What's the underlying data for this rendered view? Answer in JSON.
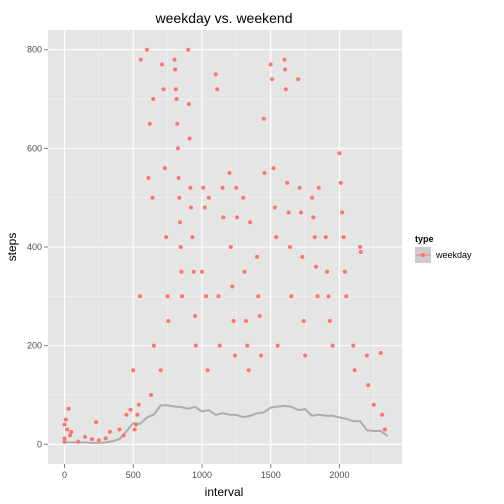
{
  "chart_data": {
    "type": "scatter",
    "title": "weekday vs. weekend",
    "xlabel": "interval",
    "ylabel": "steps",
    "xlim": [
      -120,
      2455
    ],
    "ylim": [
      -40,
      840
    ],
    "x_ticks": [
      0,
      500,
      1000,
      1500,
      2000
    ],
    "y_ticks": [
      0,
      200,
      400,
      600,
      800
    ],
    "x_tick_labels": [
      "0",
      "500",
      "1000",
      "1500",
      "2000"
    ],
    "y_tick_labels": [
      "0",
      "200",
      "400",
      "600",
      "800"
    ],
    "grid": true,
    "legend": {
      "title": "type",
      "placement": "right",
      "entries": [
        "weekday"
      ]
    },
    "series": [
      {
        "name": "weekday",
        "color": "#F8766D",
        "points": [
          [
            0,
            12
          ],
          [
            0,
            40
          ],
          [
            0,
            5
          ],
          [
            10,
            50
          ],
          [
            20,
            30
          ],
          [
            30,
            72
          ],
          [
            40,
            18
          ],
          [
            50,
            25
          ],
          [
            100,
            5
          ],
          [
            150,
            15
          ],
          [
            200,
            10
          ],
          [
            230,
            45
          ],
          [
            250,
            8
          ],
          [
            300,
            12
          ],
          [
            330,
            25
          ],
          [
            400,
            30
          ],
          [
            430,
            18
          ],
          [
            450,
            60
          ],
          [
            480,
            70
          ],
          [
            500,
            150
          ],
          [
            510,
            30
          ],
          [
            520,
            40
          ],
          [
            530,
            60
          ],
          [
            540,
            80
          ],
          [
            550,
            300
          ],
          [
            555,
            780
          ],
          [
            600,
            800
          ],
          [
            610,
            540
          ],
          [
            620,
            650
          ],
          [
            630,
            100
          ],
          [
            640,
            500
          ],
          [
            645,
            700
          ],
          [
            650,
            200
          ],
          [
            700,
            150
          ],
          [
            710,
            770
          ],
          [
            720,
            720
          ],
          [
            730,
            560
          ],
          [
            740,
            420
          ],
          [
            750,
            300
          ],
          [
            755,
            250
          ],
          [
            800,
            780
          ],
          [
            805,
            760
          ],
          [
            810,
            720
          ],
          [
            815,
            700
          ],
          [
            820,
            650
          ],
          [
            825,
            600
          ],
          [
            830,
            540
          ],
          [
            835,
            500
          ],
          [
            840,
            450
          ],
          [
            845,
            400
          ],
          [
            850,
            350
          ],
          [
            855,
            300
          ],
          [
            900,
            800
          ],
          [
            905,
            690
          ],
          [
            910,
            620
          ],
          [
            915,
            520
          ],
          [
            920,
            480
          ],
          [
            930,
            420
          ],
          [
            940,
            350
          ],
          [
            950,
            260
          ],
          [
            955,
            200
          ],
          [
            1000,
            350
          ],
          [
            1010,
            520
          ],
          [
            1020,
            480
          ],
          [
            1030,
            300
          ],
          [
            1040,
            150
          ],
          [
            1050,
            500
          ],
          [
            1100,
            750
          ],
          [
            1110,
            720
          ],
          [
            1120,
            300
          ],
          [
            1130,
            200
          ],
          [
            1150,
            520
          ],
          [
            1155,
            460
          ],
          [
            1200,
            550
          ],
          [
            1210,
            400
          ],
          [
            1220,
            320
          ],
          [
            1230,
            250
          ],
          [
            1240,
            180
          ],
          [
            1250,
            520
          ],
          [
            1255,
            460
          ],
          [
            1300,
            500
          ],
          [
            1310,
            350
          ],
          [
            1320,
            250
          ],
          [
            1330,
            200
          ],
          [
            1340,
            150
          ],
          [
            1350,
            450
          ],
          [
            1400,
            380
          ],
          [
            1410,
            300
          ],
          [
            1420,
            260
          ],
          [
            1430,
            180
          ],
          [
            1450,
            660
          ],
          [
            1455,
            550
          ],
          [
            1500,
            770
          ],
          [
            1510,
            740
          ],
          [
            1520,
            560
          ],
          [
            1530,
            480
          ],
          [
            1540,
            420
          ],
          [
            1550,
            200
          ],
          [
            1600,
            780
          ],
          [
            1605,
            760
          ],
          [
            1610,
            720
          ],
          [
            1620,
            530
          ],
          [
            1630,
            470
          ],
          [
            1640,
            400
          ],
          [
            1650,
            300
          ],
          [
            1700,
            740
          ],
          [
            1710,
            520
          ],
          [
            1720,
            470
          ],
          [
            1730,
            380
          ],
          [
            1740,
            250
          ],
          [
            1750,
            180
          ],
          [
            1800,
            500
          ],
          [
            1810,
            460
          ],
          [
            1820,
            420
          ],
          [
            1830,
            360
          ],
          [
            1840,
            300
          ],
          [
            1850,
            520
          ],
          [
            1900,
            420
          ],
          [
            1910,
            350
          ],
          [
            1920,
            300
          ],
          [
            1930,
            250
          ],
          [
            1950,
            200
          ],
          [
            2000,
            590
          ],
          [
            2010,
            530
          ],
          [
            2020,
            470
          ],
          [
            2030,
            420
          ],
          [
            2040,
            350
          ],
          [
            2050,
            300
          ],
          [
            2100,
            200
          ],
          [
            2110,
            150
          ],
          [
            2150,
            400
          ],
          [
            2155,
            390
          ],
          [
            2200,
            180
          ],
          [
            2210,
            120
          ],
          [
            2250,
            80
          ],
          [
            2300,
            185
          ],
          [
            2310,
            60
          ],
          [
            2330,
            30
          ]
        ]
      }
    ]
  }
}
